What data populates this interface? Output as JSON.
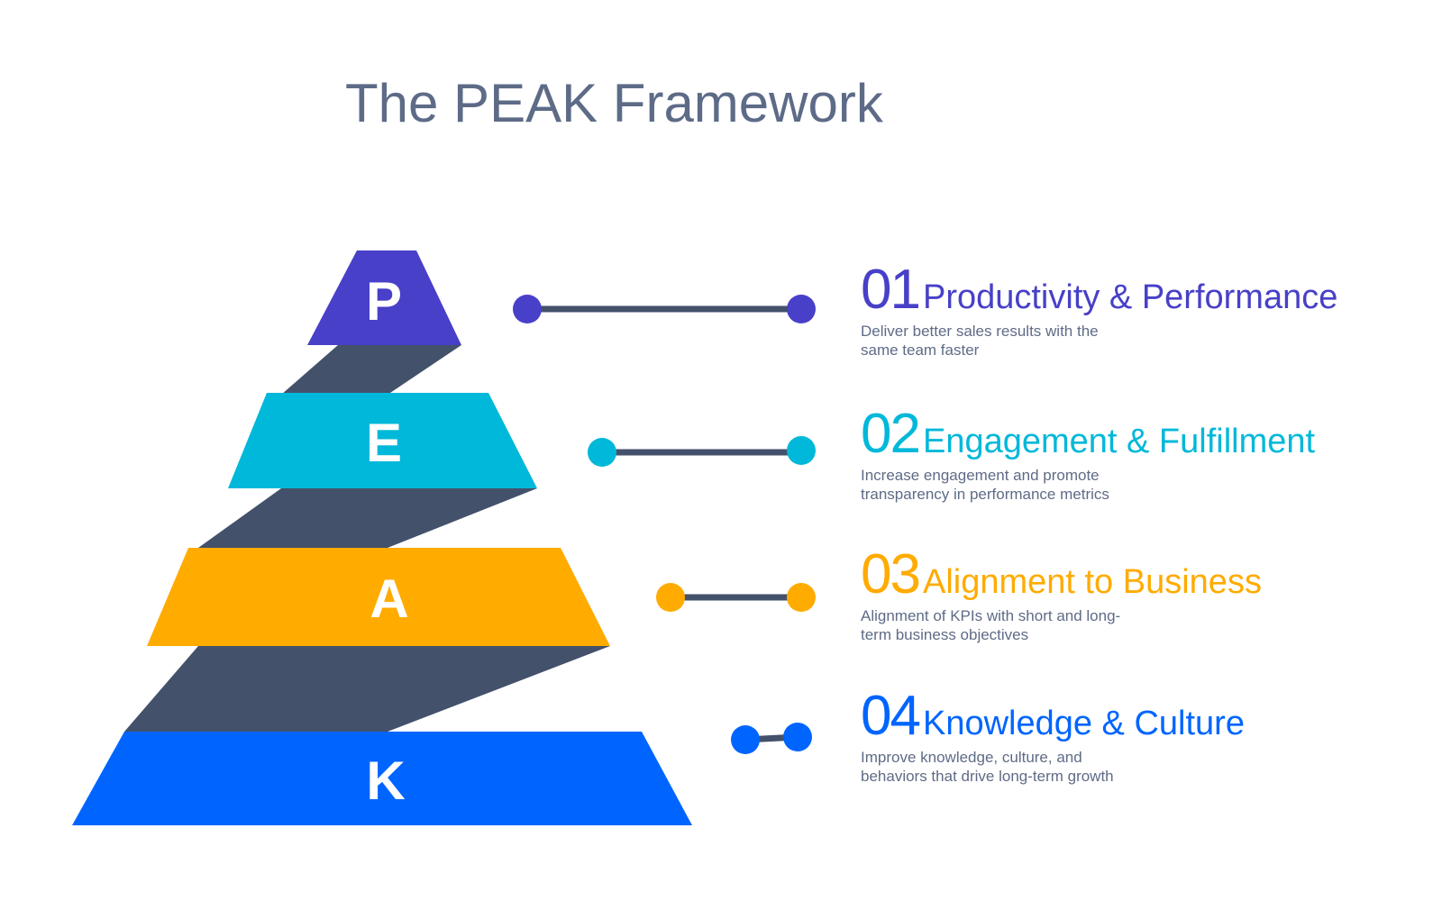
{
  "title": "The PEAK Framework",
  "colors": {
    "title": "#5d6b87",
    "connector": "#43516b",
    "description": "#5f6b86",
    "letter": "#ffffff"
  },
  "levels": [
    {
      "letter": "P",
      "number": "01",
      "title": "Productivity & Performance",
      "description": "Deliver better sales results with the same team faster",
      "color": "#4840c8"
    },
    {
      "letter": "E",
      "number": "02",
      "title": "Engagement & Fulfillment",
      "description": "Increase engagement and promote transparency in performance metrics",
      "color": "#00b8d9"
    },
    {
      "letter": "A",
      "number": "03",
      "title": "Alignment to Business",
      "description": "Alignment of KPIs with short and long-term business objectives",
      "color": "#ffab00"
    },
    {
      "letter": "K",
      "number": "04",
      "title": "Knowledge & Culture",
      "description": "Improve knowledge, culture, and behaviors that drive long-term growth",
      "color": "#0065ff"
    }
  ]
}
